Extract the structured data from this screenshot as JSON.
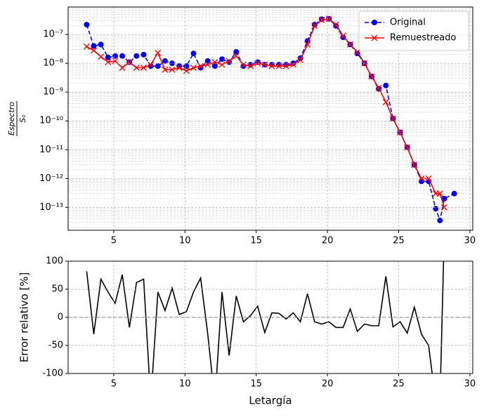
{
  "chart_data": [
    {
      "type": "line",
      "ylabel": {
        "numerator": "Espectro",
        "denominator": "S₀"
      },
      "x": [
        3.1,
        3.6,
        4.1,
        4.6,
        5.1,
        5.6,
        6.1,
        6.6,
        7.1,
        7.6,
        8.1,
        8.6,
        9.1,
        9.6,
        10.1,
        10.6,
        11.1,
        11.6,
        12.1,
        12.6,
        13.1,
        13.6,
        14.1,
        14.6,
        15.1,
        15.6,
        16.1,
        16.6,
        17.1,
        17.6,
        18.1,
        18.6,
        19.1,
        19.6,
        20.1,
        20.6,
        21.1,
        21.6,
        22.1,
        22.6,
        23.1,
        23.6,
        24.1,
        24.6,
        25.1,
        25.6,
        26.1,
        26.6,
        27.1,
        27.6,
        27.9,
        28.2,
        28.9
      ],
      "series": [
        {
          "name": "Original",
          "color": "#0000ff",
          "dash": true,
          "marker": "circle",
          "values": [
            2.2e-07,
            4e-08,
            4.5e-08,
            1.6e-08,
            1.8e-08,
            1.8e-08,
            1.1e-08,
            1.8e-08,
            2e-08,
            8e-09,
            8e-09,
            1.2e-08,
            1e-08,
            8e-09,
            8e-09,
            2.2e-08,
            7e-09,
            1.2e-08,
            8e-09,
            1.4e-08,
            1.1e-08,
            2.5e-08,
            8e-09,
            9e-09,
            1.1e-08,
            9e-09,
            9e-09,
            9e-09,
            9e-09,
            1e-08,
            1.5e-08,
            6e-08,
            2.2e-07,
            3.4e-07,
            3.5e-07,
            2e-07,
            8e-08,
            4.5e-08,
            2.2e-08,
            1e-08,
            3.5e-09,
            1.3e-09,
            1.7e-09,
            1.2e-10,
            4e-11,
            1.2e-11,
            3e-12,
            8e-13,
            8e-13,
            9e-14,
            3.5e-14,
            2e-13,
            3e-13
          ]
        },
        {
          "name": "Remuestreado",
          "color": "#ff0000",
          "dash": false,
          "marker": "x",
          "values": [
            3.8e-08,
            2.8e-08,
            1.7e-08,
            1.1e-08,
            1.2e-08,
            7e-09,
            1.1e-08,
            7e-09,
            7e-09,
            9e-09,
            2.3e-08,
            6e-09,
            6e-09,
            7e-09,
            5.5e-09,
            7e-09,
            8e-09,
            9e-09,
            1.1e-08,
            9e-09,
            1.2e-08,
            1.8e-08,
            9e-09,
            8e-09,
            1e-08,
            9e-09,
            8e-09,
            8e-09,
            8e-09,
            9e-09,
            1.3e-08,
            4.5e-08,
            2e-07,
            3.2e-07,
            3.5e-07,
            2.2e-07,
            9e-08,
            4.5e-08,
            2.5e-08,
            1e-08,
            3.5e-09,
            1.4e-09,
            4.5e-10,
            1.2e-10,
            4e-11,
            1.2e-11,
            3e-12,
            1e-12,
            1e-12,
            3e-13,
            3e-13,
            1e-13,
            null
          ]
        }
      ],
      "log_y": true,
      "grid": true,
      "legend": "upper right",
      "xlim": [
        1.8,
        30.2
      ],
      "xticks": [
        5,
        10,
        15,
        20,
        25,
        30
      ],
      "ylim": [
        1.6e-14,
        9e-07
      ],
      "yticks": [
        {
          "value": 1e-13,
          "label": "10⁻¹³"
        },
        {
          "value": 1e-12,
          "label": "10⁻¹²"
        },
        {
          "value": 1e-11,
          "label": "10⁻¹¹"
        },
        {
          "value": 1e-10,
          "label": "10⁻¹⁰"
        },
        {
          "value": 1e-09,
          "label": "10⁻⁹"
        },
        {
          "value": 1e-08,
          "label": "10⁻⁸"
        },
        {
          "value": 1e-07,
          "label": "10⁻⁷"
        }
      ]
    },
    {
      "type": "line",
      "xlabel": "Letargía",
      "ylabel": "Error relativo [%]",
      "x": [
        3.1,
        3.6,
        4.1,
        4.6,
        5.1,
        5.6,
        6.1,
        6.6,
        7.1,
        7.6,
        8.1,
        8.6,
        9.1,
        9.6,
        10.1,
        10.6,
        11.1,
        11.6,
        12.1,
        12.6,
        13.1,
        13.6,
        14.1,
        14.6,
        15.1,
        15.6,
        16.1,
        16.6,
        17.1,
        17.6,
        18.1,
        18.6,
        19.1,
        19.6,
        20.1,
        20.6,
        21.1,
        21.6,
        22.1,
        22.6,
        23.1,
        23.6,
        24.1,
        24.6,
        25.1,
        25.6,
        26.1,
        26.6,
        27.1,
        27.6,
        27.9,
        28.2,
        28.9
      ],
      "series": [
        {
          "color": "#000000",
          "values": [
            82,
            -30,
            68,
            45,
            25,
            76,
            -18,
            62,
            68,
            -150,
            45,
            12,
            52,
            5,
            10,
            45,
            70,
            -30,
            -150,
            45,
            -68,
            38,
            -8,
            3,
            20,
            -27,
            8,
            7,
            -3,
            8,
            -8,
            42,
            -8,
            -12,
            -8,
            -18,
            -18,
            15,
            -25,
            -12,
            -15,
            -15,
            73,
            -17,
            -8,
            -28,
            18,
            -30,
            -50,
            -150,
            -150,
            150,
            null
          ]
        }
      ],
      "hline": 0,
      "grid": true,
      "xlim": [
        1.8,
        30.2
      ],
      "xticks": [
        5,
        10,
        15,
        20,
        25,
        30
      ],
      "ylim": [
        -100,
        100
      ],
      "yticks": [
        -100,
        -50,
        0,
        50,
        100
      ]
    }
  ]
}
